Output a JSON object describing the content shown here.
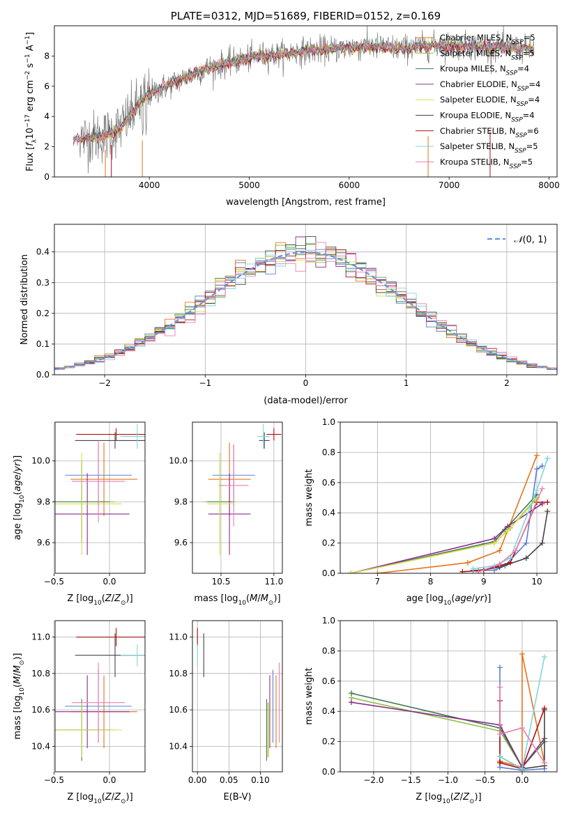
{
  "colors": {
    "palette": [
      "#5b7fd1",
      "#e8711a",
      "#8fbf3f",
      "#3d7a55",
      "#8b2a8b",
      "#d6e04a",
      "#444444",
      "#a80f0f",
      "#7fd6dc",
      "#e87fb0",
      "#8a8a8a"
    ],
    "grid": "#b0b0b0",
    "normal": "#6495dc"
  },
  "chart_data": [
    {
      "id": "spectrum",
      "type": "line",
      "title": "PLATE=0312, MJD=51689, FIBERID=0152, z=0.169",
      "xlabel": "wavelength [Angstrom, rest frame]",
      "ylabel": "Flux [f_λ10^-17 erg cm^-2 s^-1 A^-1]",
      "xlim": [
        3050,
        8080
      ],
      "ylim": [
        0,
        10
      ],
      "xticks": [
        4000,
        5000,
        6000,
        7000,
        8000
      ],
      "yticks": [
        0,
        2,
        4,
        6,
        8
      ],
      "grid": false,
      "legend_position": "upper-right",
      "continuum": {
        "x": [
          3240,
          3400,
          3550,
          3700,
          3800,
          3950,
          4100,
          4300,
          4500,
          4700,
          4900,
          5100,
          5300,
          5500,
          5700,
          5900,
          6100,
          6300,
          6500,
          6700,
          6900,
          7100,
          7300,
          7500,
          7700,
          7850
        ],
        "y": [
          2.5,
          2.6,
          2.7,
          3.2,
          4.0,
          5.3,
          5.8,
          6.4,
          7.0,
          7.4,
          7.7,
          8.0,
          8.1,
          8.3,
          8.4,
          8.5,
          8.6,
          8.6,
          8.5,
          8.6,
          8.7,
          8.7,
          8.6,
          8.6,
          8.5,
          8.4
        ]
      },
      "series": [
        {
          "name": "Chabrier MILES, N_SSP=5"
        },
        {
          "name": "Salpeter MILES, N_SSP=5"
        },
        {
          "name": "Kroupa MILES, N_SSP=4"
        },
        {
          "name": "Chabrier ELODIE, N_SSP=4"
        },
        {
          "name": "Salpeter ELODIE, N_SSP=4"
        },
        {
          "name": "Kroupa ELODIE, N_SSP=4"
        },
        {
          "name": "Chabrier STELIB, N_SSP=6"
        },
        {
          "name": "Salpeter STELIB, N_SSP=5"
        },
        {
          "name": "Kroupa STELIB, N_SSP=5"
        }
      ]
    },
    {
      "id": "residuals",
      "type": "histogram",
      "xlabel": "(data-model)/error",
      "ylabel": "Normed distribution",
      "xlim": [
        -2.5,
        2.5
      ],
      "ylim": [
        0,
        0.49
      ],
      "xticks": [
        -2,
        -1,
        0,
        1,
        2
      ],
      "yticks": [
        0.0,
        0.1,
        0.2,
        0.3,
        0.4
      ],
      "grid": true,
      "bin_width": 0.1,
      "legend": "N(0,1)",
      "legend_position": "upper-right"
    },
    {
      "id": "age-vs-Z",
      "type": "errorbar",
      "xlabel": "Z [log10(Z/Z⊙)]",
      "ylabel": "age  [log10(age/yr)]",
      "xlim": [
        -0.49,
        0.32
      ],
      "ylim": [
        9.45,
        10.19
      ],
      "xticks": [
        -0.5,
        0.0
      ],
      "yticks": [
        9.6,
        9.8,
        10.0
      ],
      "grid": true,
      "points": [
        {
          "x": -0.1,
          "y": 9.93,
          "xerr": 0.3,
          "yerr": 0.15,
          "c": 0
        },
        {
          "x": -0.05,
          "y": 9.91,
          "xerr": 0.3,
          "yerr": 0.18,
          "c": 1
        },
        {
          "x": -0.25,
          "y": 9.8,
          "xerr": 0.3,
          "yerr": 0.18,
          "c": 2
        },
        {
          "x": -0.25,
          "y": 9.8,
          "xerr": 0.25,
          "yerr": 0.2,
          "c": 3
        },
        {
          "x": -0.2,
          "y": 9.74,
          "xerr": 0.38,
          "yerr": 0.2,
          "c": 4
        },
        {
          "x": -0.25,
          "y": 9.79,
          "xerr": 0.36,
          "yerr": 0.25,
          "c": 5
        },
        {
          "x": 0.05,
          "y": 10.1,
          "xerr": 0.36,
          "yerr": 0.04,
          "c": 6
        },
        {
          "x": 0.06,
          "y": 10.13,
          "xerr": 0.36,
          "yerr": 0.03,
          "c": 7
        },
        {
          "x": 0.25,
          "y": 10.12,
          "xerr": 0.15,
          "yerr": 0.06,
          "c": 8
        },
        {
          "x": -0.1,
          "y": 9.9,
          "xerr": 0.24,
          "yerr": 0.2,
          "c": 9
        }
      ]
    },
    {
      "id": "age-vs-mass",
      "type": "errorbar",
      "xlabel": "mass [log10(M/M⊙)]",
      "ylabel": "",
      "xlim": [
        10.23,
        11.08
      ],
      "ylim": [
        9.45,
        10.19
      ],
      "xticks": [
        10.5,
        11.0
      ],
      "yticks": [
        9.6,
        9.8,
        10.0
      ],
      "grid": true,
      "points": [
        {
          "x": 10.62,
          "y": 9.93,
          "xerr": 0.2,
          "yerr": 0.15,
          "c": 0
        },
        {
          "x": 10.58,
          "y": 9.91,
          "xerr": 0.2,
          "yerr": 0.18,
          "c": 1
        },
        {
          "x": 10.49,
          "y": 9.8,
          "xerr": 0.15,
          "yerr": 0.18,
          "c": 2
        },
        {
          "x": 10.49,
          "y": 9.8,
          "xerr": 0.12,
          "yerr": 0.2,
          "c": 3
        },
        {
          "x": 10.58,
          "y": 9.74,
          "xerr": 0.2,
          "yerr": 0.2,
          "c": 4
        },
        {
          "x": 10.49,
          "y": 9.79,
          "xerr": 0.12,
          "yerr": 0.25,
          "c": 5
        },
        {
          "x": 10.91,
          "y": 10.1,
          "xerr": 0.05,
          "yerr": 0.04,
          "c": 6
        },
        {
          "x": 11.0,
          "y": 10.13,
          "xerr": 0.07,
          "yerr": 0.03,
          "c": 7
        },
        {
          "x": 10.9,
          "y": 10.12,
          "xerr": 0.06,
          "yerr": 0.06,
          "c": 8
        },
        {
          "x": 10.62,
          "y": 9.88,
          "xerr": 0.14,
          "yerr": 0.2,
          "c": 9
        }
      ]
    },
    {
      "id": "massweight-vs-age",
      "type": "line",
      "xlabel": "age  [log10(age/yr)]",
      "ylabel": "mass weight",
      "xlim": [
        6.3,
        10.38
      ],
      "ylim": [
        0,
        1
      ],
      "xticks": [
        7,
        8,
        9,
        10
      ],
      "yticks": [
        0.0,
        0.2,
        0.4,
        0.6,
        0.8,
        1.0
      ],
      "grid": true,
      "series": [
        {
          "c": 0,
          "x": [
            8.8,
            9.2,
            9.4,
            9.8,
            10.0,
            10.1
          ],
          "y": [
            0.02,
            0.02,
            0.05,
            0.2,
            0.69,
            0.71
          ]
        },
        {
          "c": 1,
          "x": [
            7.0,
            8.7,
            9.3,
            10.0
          ],
          "y": [
            0.0,
            0.07,
            0.15,
            0.78
          ]
        },
        {
          "c": 2,
          "x": [
            6.5,
            9.2,
            9.5,
            10.0
          ],
          "y": [
            0.0,
            0.2,
            0.3,
            0.5
          ]
        },
        {
          "c": 3,
          "x": [
            6.5,
            9.2,
            9.4,
            10.0
          ],
          "y": [
            0.0,
            0.21,
            0.29,
            0.52
          ]
        },
        {
          "c": 4,
          "x": [
            6.5,
            9.2,
            9.45,
            10.1
          ],
          "y": [
            0.0,
            0.23,
            0.31,
            0.46
          ]
        },
        {
          "c": 5,
          "x": [
            6.5,
            9.2,
            9.45,
            10.0
          ],
          "y": [
            0.0,
            0.2,
            0.28,
            0.49
          ]
        },
        {
          "c": 6,
          "x": [
            8.9,
            9.3,
            9.8,
            10.1,
            10.2
          ],
          "y": [
            0.02,
            0.04,
            0.1,
            0.2,
            0.41
          ]
        },
        {
          "c": 7,
          "x": [
            8.6,
            9.0,
            9.5,
            10.0,
            10.2
          ],
          "y": [
            0.01,
            0.02,
            0.07,
            0.47,
            0.47
          ]
        },
        {
          "c": 8,
          "x": [
            8.8,
            9.2,
            9.5,
            10.0,
            10.2
          ],
          "y": [
            0.03,
            0.05,
            0.1,
            0.55,
            0.76
          ]
        },
        {
          "c": 9,
          "x": [
            8.9,
            9.3,
            9.6,
            10.1
          ],
          "y": [
            0.01,
            0.06,
            0.15,
            0.56
          ]
        }
      ]
    },
    {
      "id": "mass-vs-Z",
      "type": "errorbar",
      "xlabel": "Z [log10(Z/Z⊙)]",
      "ylabel": "mass [log10(M/M⊙)]",
      "xlim": [
        -0.49,
        0.32
      ],
      "ylim": [
        10.26,
        11.09
      ],
      "xticks": [
        -0.5,
        0.0
      ],
      "yticks": [
        10.4,
        10.6,
        10.8,
        11.0
      ],
      "grid": true,
      "points": [
        {
          "x": -0.1,
          "y": 10.62,
          "xerr": 0.3,
          "yerr": 0.2,
          "c": 0
        },
        {
          "x": -0.05,
          "y": 10.59,
          "xerr": 0.3,
          "yerr": 0.2,
          "c": 1
        },
        {
          "x": -0.25,
          "y": 10.49,
          "xerr": 0.3,
          "yerr": 0.15,
          "c": 2
        },
        {
          "x": -0.25,
          "y": 10.49,
          "xerr": 0.25,
          "yerr": 0.17,
          "c": 3
        },
        {
          "x": -0.2,
          "y": 10.59,
          "xerr": 0.38,
          "yerr": 0.2,
          "c": 4
        },
        {
          "x": -0.25,
          "y": 10.49,
          "xerr": 0.36,
          "yerr": 0.15,
          "c": 5
        },
        {
          "x": 0.05,
          "y": 10.9,
          "xerr": 0.36,
          "yerr": 0.12,
          "c": 6
        },
        {
          "x": 0.06,
          "y": 11.0,
          "xerr": 0.36,
          "yerr": 0.05,
          "c": 7
        },
        {
          "x": 0.25,
          "y": 10.9,
          "xerr": 0.15,
          "yerr": 0.06,
          "c": 8
        },
        {
          "x": -0.1,
          "y": 10.64,
          "xerr": 0.24,
          "yerr": 0.22,
          "c": 9
        }
      ]
    },
    {
      "id": "mass-vs-EBV",
      "type": "errorbar",
      "xlabel": "E(B-V)",
      "ylabel": "",
      "xlim": [
        -0.008,
        0.135
      ],
      "ylim": [
        10.26,
        11.09
      ],
      "xticks": [
        0.0,
        0.05,
        0.1
      ],
      "xticklabels": [
        "0.00",
        "0.05",
        "0.10"
      ],
      "yticks": [
        10.4,
        10.6,
        10.8,
        11.0
      ],
      "grid": true,
      "points": [
        {
          "x": 0.12,
          "y": 10.62,
          "yerr": 0.2,
          "c": 0
        },
        {
          "x": 0.125,
          "y": 10.59,
          "yerr": 0.2,
          "c": 1
        },
        {
          "x": 0.112,
          "y": 10.49,
          "yerr": 0.15,
          "c": 2
        },
        {
          "x": 0.11,
          "y": 10.49,
          "yerr": 0.17,
          "c": 3
        },
        {
          "x": 0.115,
          "y": 10.59,
          "yerr": 0.2,
          "c": 4
        },
        {
          "x": 0.113,
          "y": 10.49,
          "yerr": 0.15,
          "c": 5
        },
        {
          "x": 0.01,
          "y": 10.9,
          "yerr": 0.12,
          "c": 6
        },
        {
          "x": 0.0,
          "y": 11.0,
          "yerr": 0.05,
          "c": 7
        },
        {
          "x": 0.0,
          "y": 10.9,
          "yerr": 0.06,
          "c": 8
        },
        {
          "x": 0.13,
          "y": 10.64,
          "yerr": 0.22,
          "c": 9
        }
      ]
    },
    {
      "id": "massweight-vs-Z",
      "type": "line",
      "xlabel": "Z [log10(Z/Z⊙)]",
      "ylabel": "mass weight",
      "xlim": [
        -2.45,
        0.47
      ],
      "ylim": [
        0,
        1
      ],
      "xticks": [
        -2.0,
        -1.5,
        -1.0,
        -0.5,
        0.0
      ],
      "yticks": [
        0.0,
        0.2,
        0.4,
        0.6,
        0.8,
        1.0
      ],
      "grid": true,
      "series": [
        {
          "c": 0,
          "x": [
            -0.3,
            -0.3,
            0.0,
            0.3
          ],
          "y": [
            0.69,
            0.03,
            0.01,
            0.02
          ]
        },
        {
          "c": 1,
          "x": [
            -0.3,
            0.0,
            0.0,
            0.3
          ],
          "y": [
            0.07,
            0.03,
            0.78,
            0.06
          ]
        },
        {
          "c": 2,
          "x": [
            -2.3,
            -0.3,
            0.0,
            0.3
          ],
          "y": [
            0.49,
            0.27,
            0.03,
            0.2
          ]
        },
        {
          "c": 3,
          "x": [
            -2.3,
            -0.3,
            0.0,
            0.3
          ],
          "y": [
            0.52,
            0.29,
            0.03,
            0.2
          ]
        },
        {
          "c": 4,
          "x": [
            -2.3,
            -0.3,
            0.0,
            0.3
          ],
          "y": [
            0.46,
            0.31,
            0.03,
            0.22
          ]
        },
        {
          "c": 6,
          "x": [
            -0.3,
            0.0,
            0.3,
            0.3
          ],
          "y": [
            0.1,
            0.02,
            0.04,
            0.41
          ]
        },
        {
          "c": 7,
          "x": [
            -0.3,
            -0.3,
            0.0,
            0.3
          ],
          "y": [
            0.47,
            0.06,
            0.02,
            0.42
          ]
        },
        {
          "c": 8,
          "x": [
            -0.3,
            0.0,
            0.3
          ],
          "y": [
            0.1,
            0.02,
            0.76
          ]
        },
        {
          "c": 9,
          "x": [
            -0.3,
            -0.3,
            0.0,
            0.3
          ],
          "y": [
            0.56,
            0.25,
            0.29,
            0.06
          ]
        }
      ]
    }
  ]
}
